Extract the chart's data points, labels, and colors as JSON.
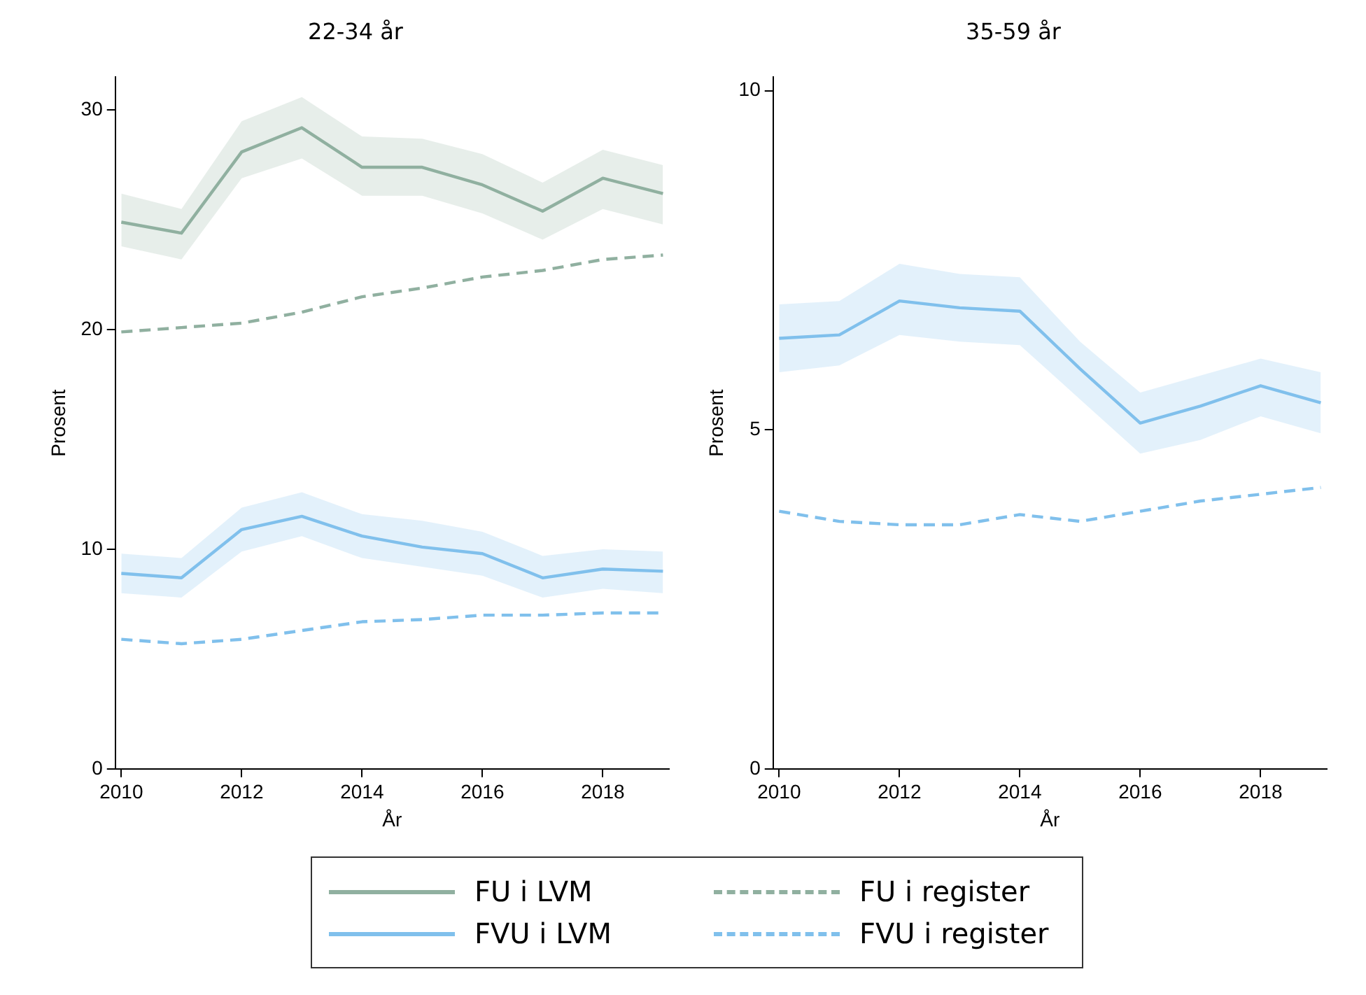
{
  "chart_data": [
    {
      "type": "line",
      "title": "22-34 år",
      "xlabel": "År",
      "ylabel": "Prosent",
      "x": [
        2010,
        2011,
        2012,
        2013,
        2014,
        2015,
        2016,
        2017,
        2018,
        2019
      ],
      "xlim": [
        2009.9,
        2019.1
      ],
      "xticks": [
        2010,
        2012,
        2014,
        2016,
        2018
      ],
      "ylim": [
        0,
        31.5
      ],
      "yticks": [
        0,
        10,
        20,
        30
      ],
      "grid": false,
      "legend": "bottom",
      "marker": "none",
      "series": [
        {
          "name": "FU i LVM",
          "color": "#90b0a0",
          "line_style": "solid",
          "values": [
            24.9,
            24.4,
            28.1,
            29.2,
            27.4,
            27.4,
            26.6,
            25.4,
            26.9,
            26.2
          ],
          "lower": [
            23.8,
            23.2,
            26.9,
            27.8,
            26.1,
            26.1,
            25.3,
            24.1,
            25.5,
            24.8
          ],
          "upper": [
            26.2,
            25.5,
            29.5,
            30.6,
            28.8,
            28.7,
            28.0,
            26.7,
            28.2,
            27.5
          ]
        },
        {
          "name": "FU i register",
          "color": "#90b0a0",
          "line_style": "dashed",
          "values": [
            19.9,
            20.1,
            20.3,
            20.8,
            21.5,
            21.9,
            22.4,
            22.7,
            23.2,
            23.4
          ]
        },
        {
          "name": "FVU i LVM",
          "color": "#80c0ec",
          "line_style": "solid",
          "values": [
            8.9,
            8.7,
            10.9,
            11.5,
            10.6,
            10.1,
            9.8,
            8.7,
            9.1,
            9.0
          ],
          "lower": [
            8.0,
            7.8,
            9.9,
            10.6,
            9.6,
            9.2,
            8.8,
            7.8,
            8.2,
            8.0
          ],
          "upper": [
            9.8,
            9.6,
            11.9,
            12.6,
            11.6,
            11.3,
            10.8,
            9.7,
            10.0,
            9.9
          ]
        },
        {
          "name": "FVU i register",
          "color": "#80c0ec",
          "line_style": "dashed",
          "values": [
            5.9,
            5.7,
            5.9,
            6.3,
            6.7,
            6.8,
            7.0,
            7.0,
            7.1,
            7.1
          ]
        }
      ]
    },
    {
      "type": "line",
      "title": "35-59 år",
      "xlabel": "År",
      "ylabel": "Prosent",
      "x": [
        2010,
        2011,
        2012,
        2013,
        2014,
        2015,
        2016,
        2017,
        2018,
        2019
      ],
      "xlim": [
        2009.9,
        2019.1
      ],
      "xticks": [
        2010,
        2012,
        2014,
        2016,
        2018
      ],
      "ylim": [
        0,
        10.2
      ],
      "yticks": [
        0,
        5,
        10
      ],
      "grid": false,
      "marker": "none",
      "series": [
        {
          "color": "#80c0ec",
          "line_style": "solid",
          "values": [
            6.35,
            6.4,
            6.9,
            6.8,
            6.75,
            5.9,
            5.1,
            5.35,
            5.65,
            5.4
          ],
          "lower": [
            5.85,
            5.95,
            6.4,
            6.3,
            6.25,
            5.45,
            4.65,
            4.85,
            5.2,
            4.95
          ],
          "upper": [
            6.85,
            6.9,
            7.45,
            7.3,
            7.25,
            6.3,
            5.55,
            5.8,
            6.05,
            5.85
          ]
        },
        {
          "color": "#80c0ec",
          "line_style": "dashed",
          "values": [
            3.8,
            3.65,
            3.6,
            3.6,
            3.75,
            3.65,
            3.8,
            3.95,
            4.05,
            4.15
          ]
        }
      ]
    }
  ]
}
